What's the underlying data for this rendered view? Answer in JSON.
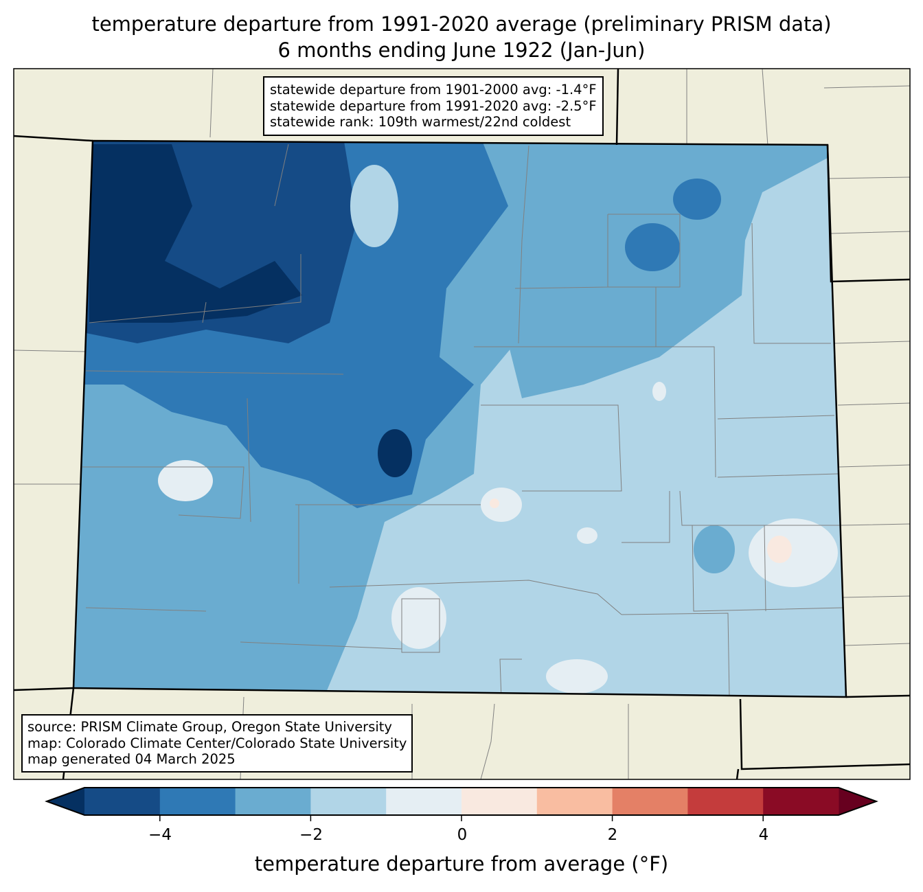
{
  "title": {
    "line1": "temperature departure from 1991-2020 average (preliminary PRISM data)",
    "line2": "6 months ending June 1922 (Jan-Jun)"
  },
  "stats": {
    "line1": "statewide departure from 1901-2000 avg: -1.4°F",
    "line2": "statewide departure from 1991-2020 avg: -2.5°F",
    "line3": "statewide rank: 109th warmest/22nd coldest"
  },
  "source": {
    "line1": "source: PRISM Climate Group, Oregon State University",
    "line2": "map: Colorado Climate Center/Colorado State University",
    "line3": "map generated 04 March 2025"
  },
  "colorbar": {
    "label": "temperature departure from average (°F)",
    "ticks": [
      "−4",
      "−2",
      "0",
      "2",
      "4"
    ],
    "bounds": [
      -5,
      -4,
      -3,
      -2,
      -1,
      0,
      1,
      2,
      3,
      4,
      5
    ],
    "colors": [
      "#154b86",
      "#2f79b5",
      "#6aacd0",
      "#b1d5e7",
      "#e5eef3",
      "#f9e9e0",
      "#f9bda1",
      "#e48066",
      "#c43c3c",
      "#8a0b25"
    ],
    "under_color": "#053061",
    "over_color": "#67001f"
  },
  "map_colors": {
    "land": "#efeedc",
    "county_line": "#808080"
  }
}
